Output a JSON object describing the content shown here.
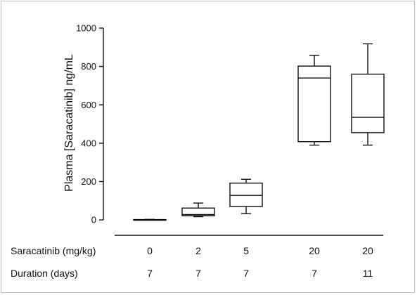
{
  "chart_data": {
    "type": "box",
    "ylabel": "Plasma [Saracatinib] ng/mL",
    "ylim": [
      -80,
      1000
    ],
    "yticks": [
      0,
      200,
      400,
      600,
      800,
      1000
    ],
    "y_tick_labels": [
      "0",
      "200",
      "400",
      "600",
      "800",
      "1000"
    ],
    "categories": [
      "0 / 7",
      "2 / 7",
      "5 / 7",
      "20 / 7",
      "20 / 11"
    ],
    "series": [
      {
        "min": 0,
        "q1": 0,
        "median": 0,
        "q3": 2,
        "max": 3
      },
      {
        "min": 17,
        "q1": 22,
        "median": 28,
        "q3": 62,
        "max": 88
      },
      {
        "min": 33,
        "q1": 70,
        "median": 128,
        "q3": 192,
        "max": 212
      },
      {
        "min": 390,
        "q1": 408,
        "median": 740,
        "q3": 802,
        "max": 858
      },
      {
        "min": 390,
        "q1": 455,
        "median": 535,
        "q3": 760,
        "max": 918
      }
    ],
    "rows": [
      {
        "label": "Saracatinib (mg/kg)",
        "values": [
          "0",
          "2",
          "5",
          "20",
          "20"
        ]
      },
      {
        "label": "Duration (days)",
        "values": [
          "7",
          "7",
          "7",
          "7",
          "11"
        ]
      }
    ]
  }
}
